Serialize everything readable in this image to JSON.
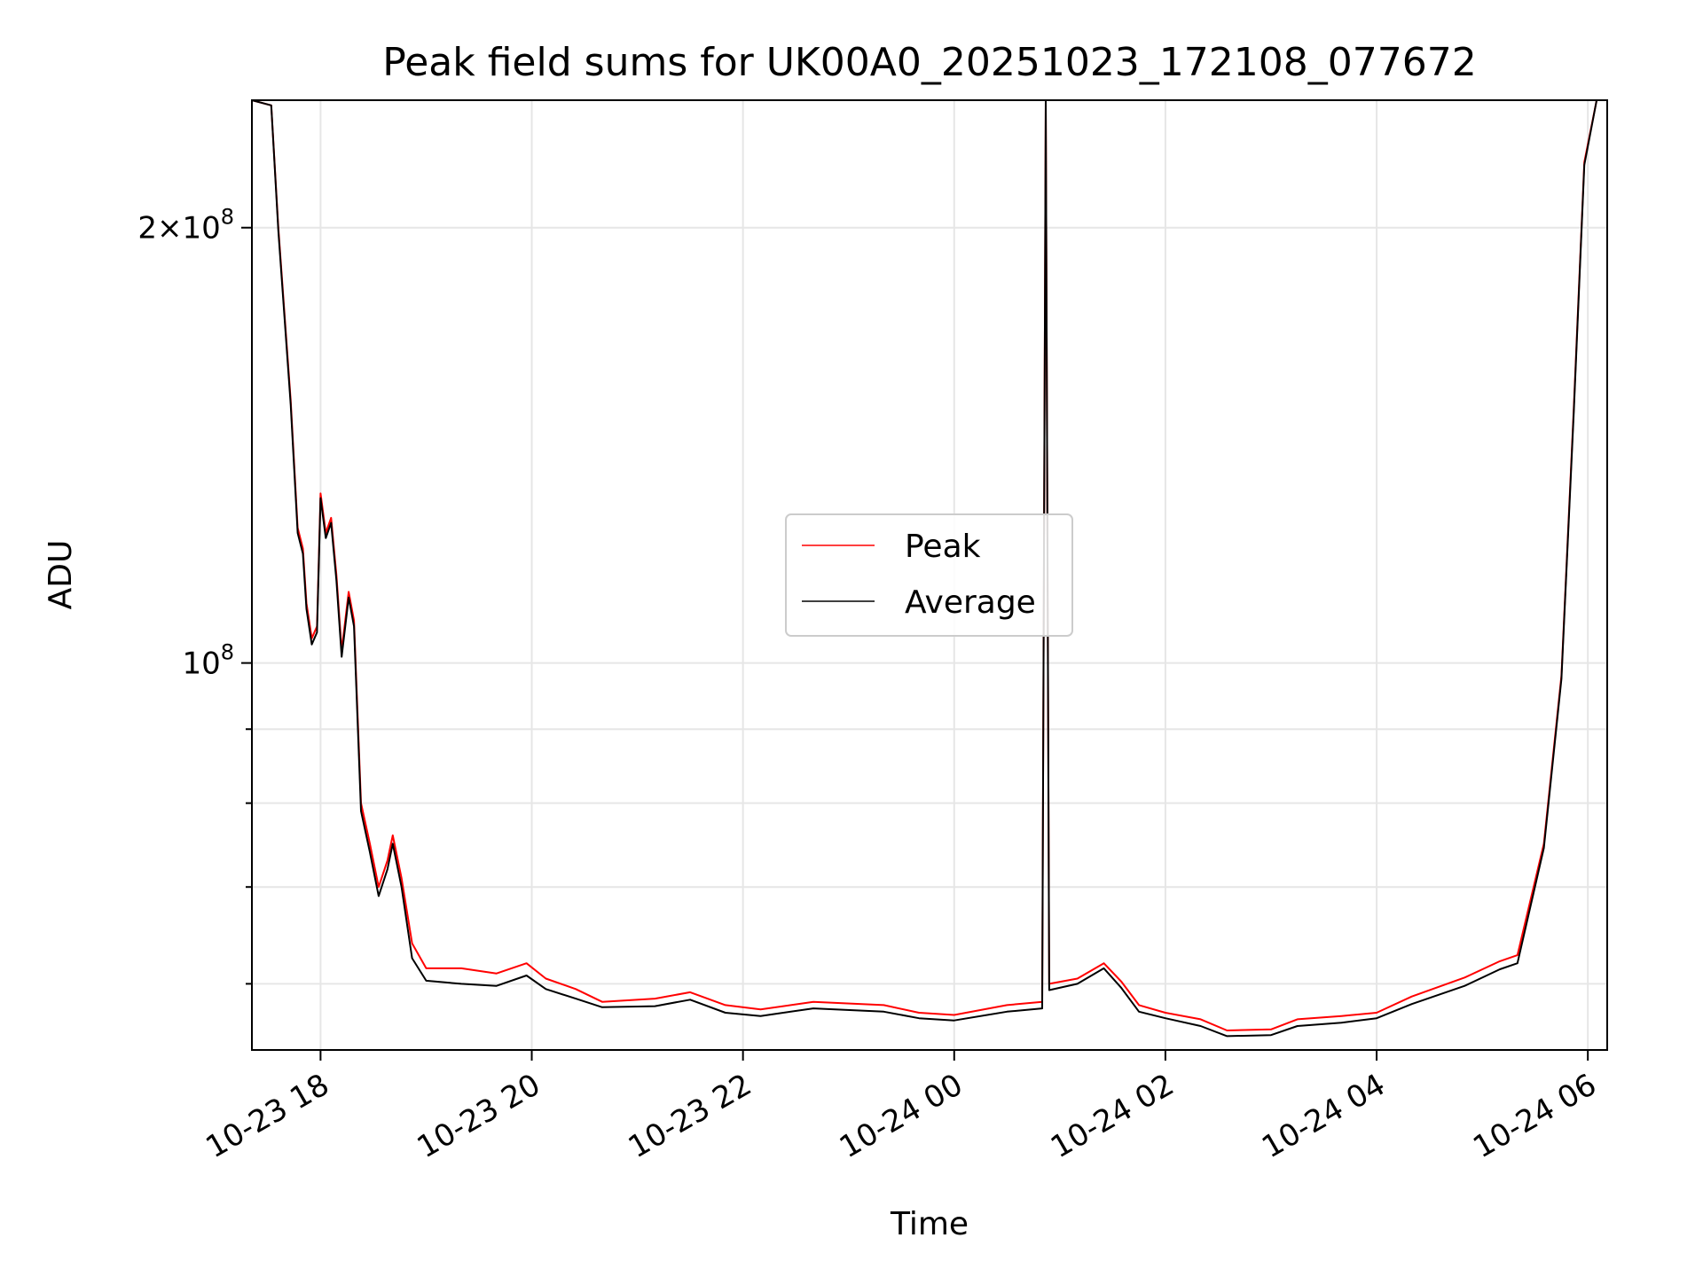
{
  "chart_data": {
    "type": "line",
    "title": "Peak field sums for UK00A0_20251023_172108_077672",
    "xlabel": "Time",
    "ylabel": "ADU",
    "yscale": "log",
    "ylim": [
      54000000,
      245000000
    ],
    "xlim": [
      "2025-10-23 17:21",
      "2025-10-24 06:11"
    ],
    "grid": true,
    "legend_position": "center",
    "x_ticks": [
      {
        "t": "2025-10-23 18:00",
        "label": "10-23 18"
      },
      {
        "t": "2025-10-23 20:00",
        "label": "10-23 20"
      },
      {
        "t": "2025-10-23 22:00",
        "label": "10-23 22"
      },
      {
        "t": "2025-10-24 00:00",
        "label": "10-24 00"
      },
      {
        "t": "2025-10-24 02:00",
        "label": "10-24 02"
      },
      {
        "t": "2025-10-24 04:00",
        "label": "10-24 04"
      },
      {
        "t": "2025-10-24 06:00",
        "label": "10-24 06"
      }
    ],
    "y_major_ticks": [
      {
        "v": 100000000,
        "base": "10",
        "exp": "8",
        "mantissa": ""
      },
      {
        "v": 200000000,
        "base": "10",
        "exp": "8",
        "mantissa": "2"
      }
    ],
    "y_minor_ticks": [
      60000000,
      70000000,
      80000000,
      90000000
    ],
    "series": [
      {
        "name": "Peak",
        "color": "#ff0000",
        "points": [
          [
            "2025-10-23 17:21",
            245000000
          ],
          [
            "2025-10-23 17:32",
            243000000
          ],
          [
            "2025-10-23 17:36",
            200000000
          ],
          [
            "2025-10-23 17:43",
            152000000
          ],
          [
            "2025-10-23 17:47",
            124000000
          ],
          [
            "2025-10-23 17:50",
            120000000
          ],
          [
            "2025-10-23 17:52",
            110000000
          ],
          [
            "2025-10-23 17:55",
            104000000
          ],
          [
            "2025-10-23 17:58",
            106000000
          ],
          [
            "2025-10-23 18:00",
            131000000
          ],
          [
            "2025-10-23 18:03",
            123000000
          ],
          [
            "2025-10-23 18:06",
            126000000
          ],
          [
            "2025-10-23 18:09",
            115000000
          ],
          [
            "2025-10-23 18:12",
            102000000
          ],
          [
            "2025-10-23 18:16",
            112000000
          ],
          [
            "2025-10-23 18:19",
            107000000
          ],
          [
            "2025-10-23 18:23",
            80000000
          ],
          [
            "2025-10-23 18:28",
            75000000
          ],
          [
            "2025-10-23 18:33",
            70000000
          ],
          [
            "2025-10-23 18:38",
            73000000
          ],
          [
            "2025-10-23 18:41",
            76000000
          ],
          [
            "2025-10-23 18:46",
            71000000
          ],
          [
            "2025-10-23 18:52",
            64000000
          ],
          [
            "2025-10-23 19:00",
            61500000
          ],
          [
            "2025-10-23 19:20",
            61500000
          ],
          [
            "2025-10-23 19:40",
            61000000
          ],
          [
            "2025-10-23 19:57",
            62000000
          ],
          [
            "2025-10-23 20:08",
            60500000
          ],
          [
            "2025-10-23 20:25",
            59500000
          ],
          [
            "2025-10-23 20:40",
            58300000
          ],
          [
            "2025-10-23 21:10",
            58600000
          ],
          [
            "2025-10-23 21:30",
            59200000
          ],
          [
            "2025-10-23 21:50",
            58000000
          ],
          [
            "2025-10-23 22:10",
            57600000
          ],
          [
            "2025-10-23 22:40",
            58300000
          ],
          [
            "2025-10-23 23:20",
            58000000
          ],
          [
            "2025-10-23 23:40",
            57300000
          ],
          [
            "2025-10-24 00:00",
            57100000
          ],
          [
            "2025-10-24 00:30",
            58000000
          ],
          [
            "2025-10-24 00:50",
            58300000
          ],
          [
            "2025-10-24 00:52",
            245000000
          ],
          [
            "2025-10-24 00:54",
            60000000
          ],
          [
            "2025-10-24 01:10",
            60500000
          ],
          [
            "2025-10-24 01:25",
            62000000
          ],
          [
            "2025-10-24 01:35",
            60200000
          ],
          [
            "2025-10-24 01:45",
            58000000
          ],
          [
            "2025-10-24 02:00",
            57300000
          ],
          [
            "2025-10-24 02:20",
            56700000
          ],
          [
            "2025-10-24 02:35",
            55700000
          ],
          [
            "2025-10-24 03:00",
            55800000
          ],
          [
            "2025-10-24 03:15",
            56700000
          ],
          [
            "2025-10-24 03:40",
            57000000
          ],
          [
            "2025-10-24 04:00",
            57300000
          ],
          [
            "2025-10-24 04:20",
            58800000
          ],
          [
            "2025-10-24 04:50",
            60600000
          ],
          [
            "2025-10-24 05:10",
            62200000
          ],
          [
            "2025-10-24 05:20",
            62800000
          ],
          [
            "2025-10-24 05:35",
            75000000
          ],
          [
            "2025-10-24 05:45",
            98000000
          ],
          [
            "2025-10-24 05:52",
            150000000
          ],
          [
            "2025-10-24 05:58",
            222000000
          ],
          [
            "2025-10-24 06:05",
            245000000
          ],
          [
            "2025-10-24 06:11",
            245000000
          ]
        ]
      },
      {
        "name": "Average",
        "color": "#000000",
        "points": [
          [
            "2025-10-23 17:21",
            245000000
          ],
          [
            "2025-10-23 17:32",
            243000000
          ],
          [
            "2025-10-23 17:36",
            199000000
          ],
          [
            "2025-10-23 17:43",
            151000000
          ],
          [
            "2025-10-23 17:47",
            123000000
          ],
          [
            "2025-10-23 17:50",
            119000000
          ],
          [
            "2025-10-23 17:52",
            109000000
          ],
          [
            "2025-10-23 17:55",
            103000000
          ],
          [
            "2025-10-23 17:58",
            105000000
          ],
          [
            "2025-10-23 18:00",
            130000000
          ],
          [
            "2025-10-23 18:03",
            122000000
          ],
          [
            "2025-10-23 18:06",
            125000000
          ],
          [
            "2025-10-23 18:09",
            114000000
          ],
          [
            "2025-10-23 18:12",
            101000000
          ],
          [
            "2025-10-23 18:16",
            111000000
          ],
          [
            "2025-10-23 18:19",
            106000000
          ],
          [
            "2025-10-23 18:23",
            79000000
          ],
          [
            "2025-10-23 18:28",
            74000000
          ],
          [
            "2025-10-23 18:33",
            69000000
          ],
          [
            "2025-10-23 18:38",
            72000000
          ],
          [
            "2025-10-23 18:41",
            75000000
          ],
          [
            "2025-10-23 18:46",
            70000000
          ],
          [
            "2025-10-23 18:52",
            62500000
          ],
          [
            "2025-10-23 19:00",
            60300000
          ],
          [
            "2025-10-23 19:20",
            60000000
          ],
          [
            "2025-10-23 19:40",
            59800000
          ],
          [
            "2025-10-23 19:57",
            60800000
          ],
          [
            "2025-10-23 20:08",
            59500000
          ],
          [
            "2025-10-23 20:25",
            58600000
          ],
          [
            "2025-10-23 20:40",
            57800000
          ],
          [
            "2025-10-23 21:10",
            57900000
          ],
          [
            "2025-10-23 21:30",
            58500000
          ],
          [
            "2025-10-23 21:50",
            57300000
          ],
          [
            "2025-10-23 22:10",
            57000000
          ],
          [
            "2025-10-23 22:40",
            57700000
          ],
          [
            "2025-10-23 23:20",
            57400000
          ],
          [
            "2025-10-23 23:40",
            56800000
          ],
          [
            "2025-10-24 00:00",
            56600000
          ],
          [
            "2025-10-24 00:30",
            57400000
          ],
          [
            "2025-10-24 00:50",
            57700000
          ],
          [
            "2025-10-24 00:52",
            245000000
          ],
          [
            "2025-10-24 00:54",
            59400000
          ],
          [
            "2025-10-24 01:10",
            60000000
          ],
          [
            "2025-10-24 01:25",
            61500000
          ],
          [
            "2025-10-24 01:35",
            59600000
          ],
          [
            "2025-10-24 01:45",
            57400000
          ],
          [
            "2025-10-24 02:00",
            56800000
          ],
          [
            "2025-10-24 02:20",
            56100000
          ],
          [
            "2025-10-24 02:35",
            55200000
          ],
          [
            "2025-10-24 03:00",
            55300000
          ],
          [
            "2025-10-24 03:15",
            56100000
          ],
          [
            "2025-10-24 03:40",
            56400000
          ],
          [
            "2025-10-24 04:00",
            56800000
          ],
          [
            "2025-10-24 04:20",
            58100000
          ],
          [
            "2025-10-24 04:50",
            59800000
          ],
          [
            "2025-10-24 05:10",
            61400000
          ],
          [
            "2025-10-24 05:20",
            62000000
          ],
          [
            "2025-10-24 05:35",
            74500000
          ],
          [
            "2025-10-24 05:45",
            97500000
          ],
          [
            "2025-10-24 05:52",
            149000000
          ],
          [
            "2025-10-24 05:58",
            221000000
          ],
          [
            "2025-10-24 06:05",
            245000000
          ],
          [
            "2025-10-24 06:11",
            245000000
          ]
        ]
      }
    ]
  }
}
